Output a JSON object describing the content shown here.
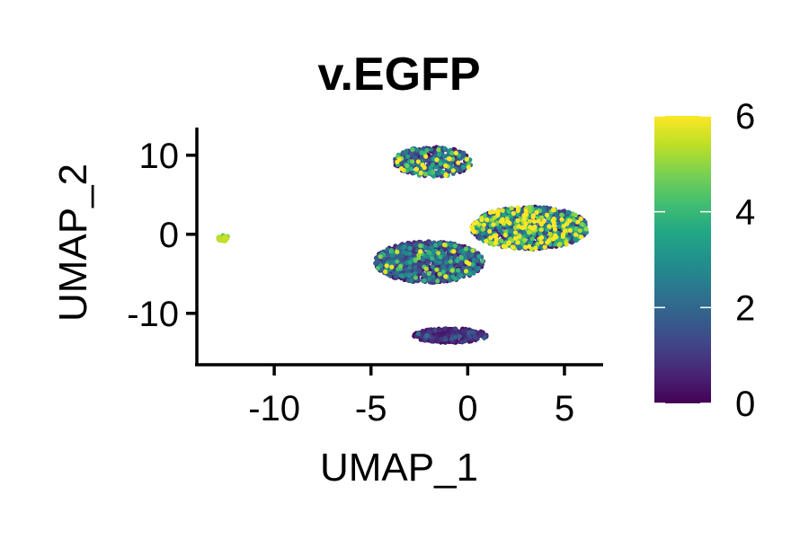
{
  "chart_data": {
    "type": "scatter",
    "title": "v.EGFP",
    "xlabel": "UMAP_1",
    "ylabel": "UMAP_2",
    "xlim": [
      -14,
      7
    ],
    "ylim": [
      -16.5,
      13.5
    ],
    "xticks": [
      -10,
      -5,
      0,
      5
    ],
    "yticks": [
      -10,
      0,
      10
    ],
    "xtick_labels": [
      "-10",
      "-5",
      "0",
      "5"
    ],
    "ytick_labels": [
      "-10",
      "0",
      "10"
    ],
    "grid": false,
    "colorbar": {
      "label": "",
      "colormap": "viridis",
      "range": [
        0,
        6
      ],
      "ticks": [
        0,
        2,
        4,
        6
      ],
      "tick_labels": [
        "0",
        "2",
        "4",
        "6"
      ]
    },
    "clusters": [
      {
        "center": [
          -1.8,
          9.2
        ],
        "spread": [
          2.0,
          1.9
        ],
        "n": 420,
        "mean_value": 1.8
      },
      {
        "center": [
          3.2,
          0.8
        ],
        "spread": [
          3.0,
          2.7
        ],
        "n": 1100,
        "mean_value": 2.3
      },
      {
        "center": [
          -2.0,
          -3.5
        ],
        "spread": [
          2.8,
          2.6
        ],
        "n": 1000,
        "mean_value": 1.2
      },
      {
        "center": [
          -0.9,
          -12.8
        ],
        "spread": [
          1.9,
          0.9
        ],
        "n": 340,
        "mean_value": 0.4
      },
      {
        "center": [
          -12.6,
          -0.5
        ],
        "spread": [
          0.3,
          0.4
        ],
        "n": 30,
        "mean_value": 5.0
      }
    ]
  }
}
